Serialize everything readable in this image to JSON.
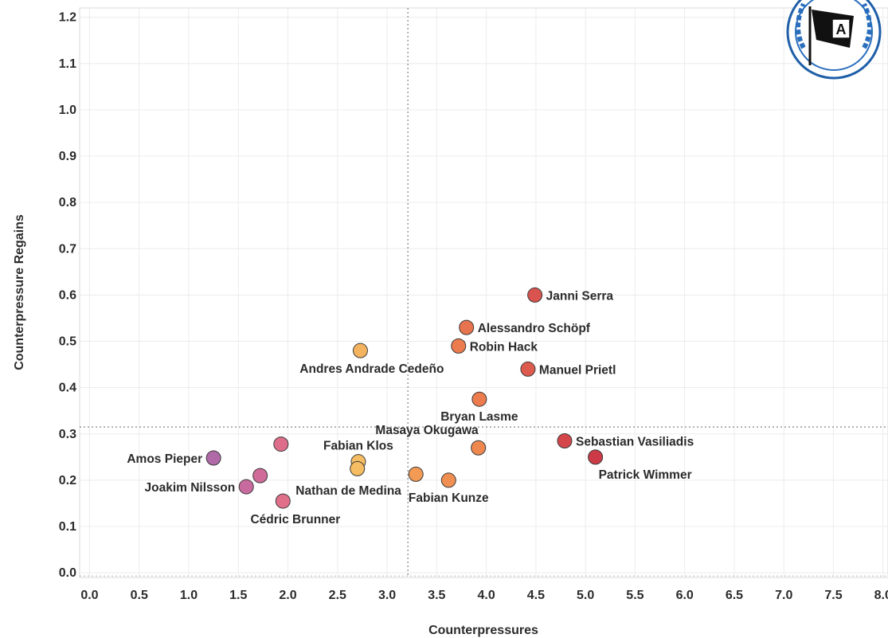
{
  "chart_data": {
    "type": "scatter",
    "xlabel": "Counterpressures",
    "ylabel": "Counterpressure Regains",
    "xlim": [
      -0.1,
      8.05
    ],
    "ylim": [
      -0.01,
      1.22
    ],
    "x_ticks": [
      "0.0",
      "0.5",
      "1.0",
      "1.5",
      "2.0",
      "2.5",
      "3.0",
      "3.5",
      "4.0",
      "4.5",
      "5.0",
      "5.5",
      "6.0",
      "6.5",
      "7.0",
      "7.5",
      "8.0"
    ],
    "y_ticks": [
      "0.0",
      "0.1",
      "0.2",
      "0.3",
      "0.4",
      "0.5",
      "0.6",
      "0.7",
      "0.8",
      "0.9",
      "1.0",
      "1.1",
      "1.2"
    ],
    "grid": true,
    "reference_lines": {
      "x": 3.21,
      "y": 0.315
    },
    "points": [
      {
        "label": "Janni Serra",
        "x": 4.49,
        "y": 0.6,
        "color": "#d9534f",
        "label_pos": "right"
      },
      {
        "label": "Alessandro Schöpf",
        "x": 3.8,
        "y": 0.53,
        "color": "#e8734f",
        "label_pos": "right"
      },
      {
        "label": "Robin Hack",
        "x": 3.72,
        "y": 0.49,
        "color": "#ec7c4e",
        "label_pos": "right"
      },
      {
        "label": "Andres Andrade Cedeño",
        "x": 2.73,
        "y": 0.48,
        "color": "#f4b35e",
        "label_pos": "below-left"
      },
      {
        "label": "Manuel Prietl",
        "x": 4.42,
        "y": 0.44,
        "color": "#dd5a4e",
        "label_pos": "right"
      },
      {
        "label": "Bryan Lasme",
        "x": 3.93,
        "y": 0.375,
        "color": "#ec7c4e",
        "label_pos": "below"
      },
      {
        "label": "Masaya Okugawa",
        "x": 3.92,
        "y": 0.27,
        "color": "#ef884f",
        "label_pos": "above-left"
      },
      {
        "label": "Sebastian Vasiliadis",
        "x": 4.79,
        "y": 0.285,
        "color": "#d4464a",
        "label_pos": "right"
      },
      {
        "label": "Patrick Wimmer",
        "x": 5.1,
        "y": 0.25,
        "color": "#cc3a47",
        "label_pos": "below-right"
      },
      {
        "label": "Fabian Klos",
        "x": 2.71,
        "y": 0.24,
        "color": "#f6bd63",
        "label_pos": "above"
      },
      {
        "label": "",
        "x": 2.7,
        "y": 0.225,
        "color": "#f6bd63",
        "label_pos": "none"
      },
      {
        "label": "",
        "x": 3.29,
        "y": 0.213,
        "color": "#f39a55",
        "label_pos": "none"
      },
      {
        "label": "Fabian Kunze",
        "x": 3.62,
        "y": 0.2,
        "color": "#f08f52",
        "label_pos": "below"
      },
      {
        "label": "Nathan de Medina",
        "x": 1.95,
        "y": 0.155,
        "color": "#e0708a",
        "label_pos": "above-right"
      },
      {
        "label": "Cédric Brunner",
        "x": 1.95,
        "y": 0.155,
        "color": "#e0708a",
        "label_pos": "below-left"
      },
      {
        "label": "",
        "x": 1.93,
        "y": 0.278,
        "color": "#de6d8c",
        "label_pos": "none"
      },
      {
        "label": "Amos Pieper",
        "x": 1.25,
        "y": 0.248,
        "color": "#b16aa8",
        "label_pos": "left"
      },
      {
        "label": "",
        "x": 1.72,
        "y": 0.21,
        "color": "#cf6a99",
        "label_pos": "none"
      },
      {
        "label": "Joakim Nilsson",
        "x": 1.58,
        "y": 0.186,
        "color": "#c96a9e",
        "label_pos": "left"
      }
    ]
  },
  "logo": {
    "name": "arminia-bielefeld-crest",
    "text": "A"
  }
}
